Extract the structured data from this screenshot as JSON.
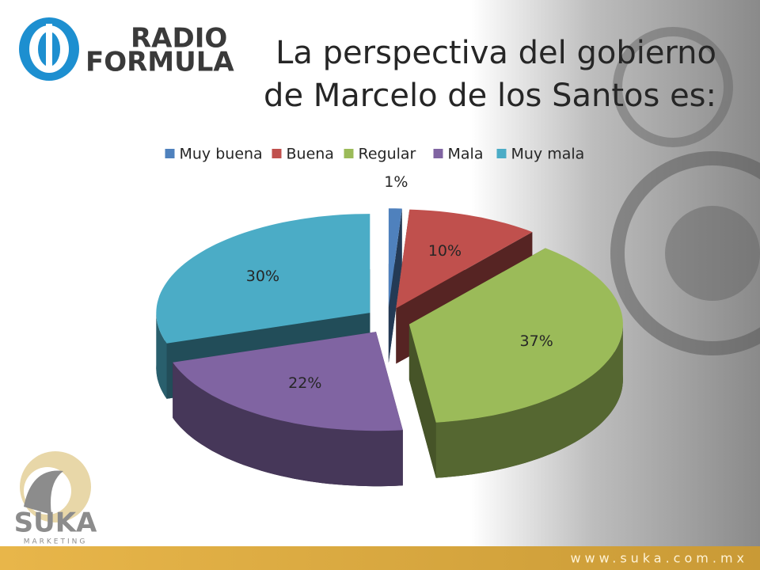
{
  "chart_data": {
    "type": "pie3d",
    "title": "La perspectiva del gobierno de Marcelo de los Santos es:",
    "categories": [
      "Muy buena",
      "Buena",
      "Regular",
      "Mala",
      "Muy mala"
    ],
    "values": [
      1,
      10,
      37,
      22,
      30
    ],
    "value_labels": [
      "1%",
      "10%",
      "37%",
      "22%",
      "30%"
    ],
    "colors": [
      "#4f81bd",
      "#c0504d",
      "#9bbb59",
      "#8064a2",
      "#4bacc6"
    ],
    "legend": "top"
  },
  "branding": {
    "top_logo": [
      "RADIO",
      "FORMULA"
    ],
    "bottom_logo": "SUKA",
    "bottom_logo_sub": "MARKETING",
    "footer": "www.suka.com.mx"
  }
}
